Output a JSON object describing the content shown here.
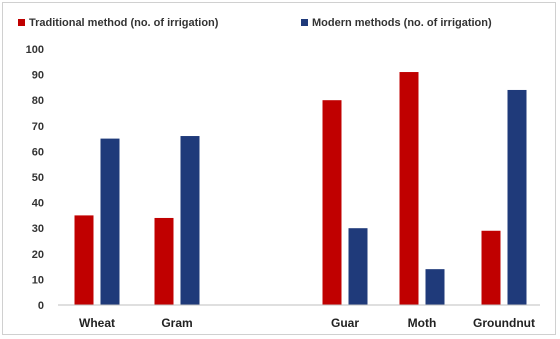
{
  "chart_data": {
    "type": "bar",
    "title": "",
    "xlabel": "",
    "ylabel": "",
    "categories": [
      "Wheat",
      "Gram",
      "Guar",
      "Moth",
      "Groundnut"
    ],
    "series": [
      {
        "name": "Traditional method (no. of irrigation)",
        "color": "#c00000",
        "values": [
          35,
          34,
          80,
          91,
          29
        ]
      },
      {
        "name": "Modern methods (no. of irrigation)",
        "color": "#1f3a7a",
        "values": [
          65,
          66,
          30,
          14,
          84
        ]
      }
    ],
    "ylim": [
      0,
      100
    ],
    "yticks": [
      0,
      10,
      20,
      30,
      40,
      50,
      60,
      70,
      80,
      90,
      100
    ],
    "grid": false,
    "legend_position": "top"
  }
}
